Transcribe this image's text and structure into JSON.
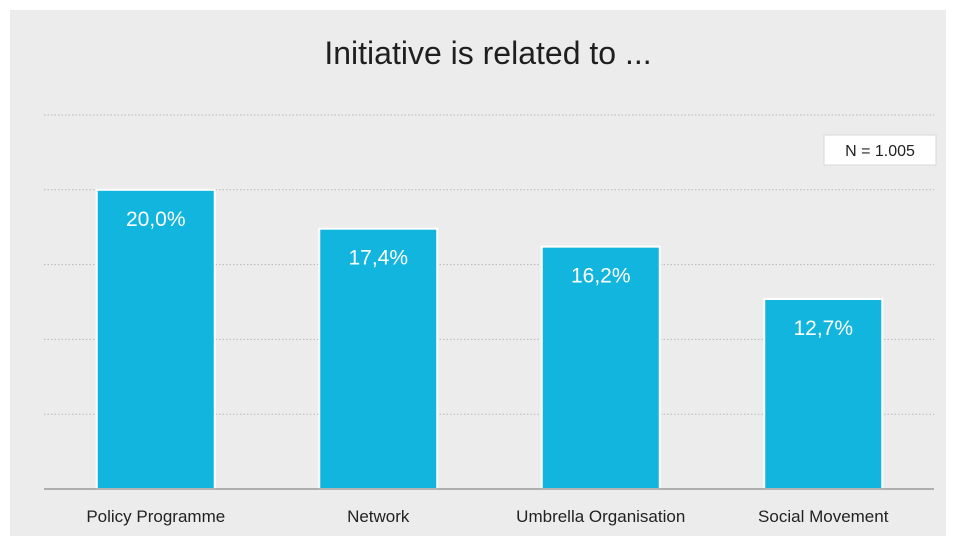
{
  "chart_data": {
    "type": "bar",
    "title": "Initiative is related to ...",
    "xlabel": "",
    "ylabel": "",
    "categories": [
      "Policy Programme",
      "Network",
      "Umbrella Organisation",
      "Social Movement"
    ],
    "values": [
      20.0,
      17.4,
      16.2,
      12.7
    ],
    "value_labels": [
      "20,0%",
      "17,4%",
      "16,2%",
      "12,7%"
    ],
    "ylim": [
      0,
      25
    ],
    "grid": true,
    "bar_color": "#12b5dd",
    "annotation": "N = 1.005"
  }
}
